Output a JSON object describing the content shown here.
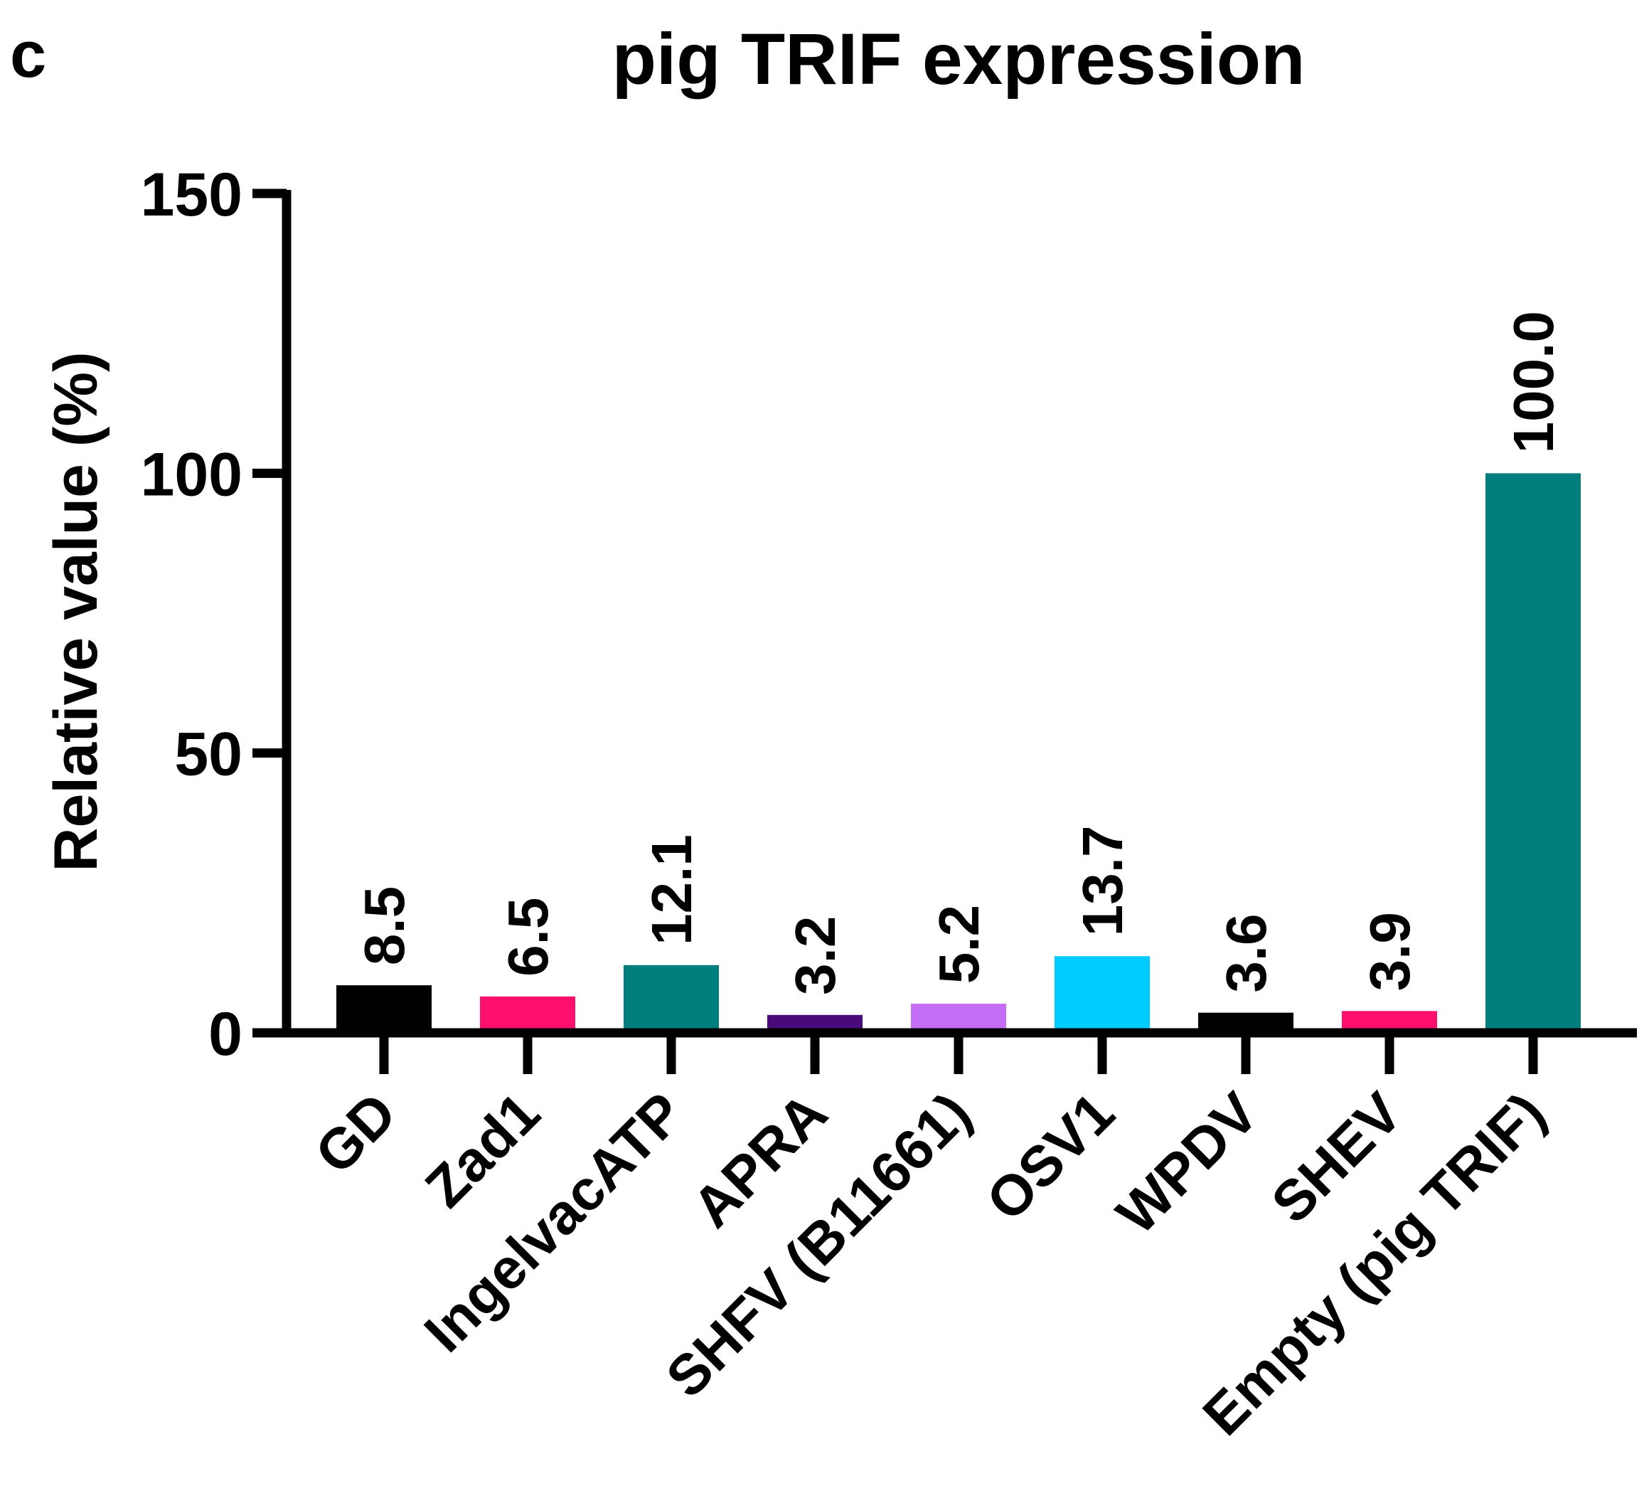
{
  "panel_label": "c",
  "chart_data": {
    "type": "bar",
    "title": "pig TRIF expression",
    "xlabel": "",
    "ylabel": "Relative value (%)",
    "ylim": [
      0,
      150
    ],
    "yticks": [
      0,
      50,
      100,
      150
    ],
    "categories": [
      "GD",
      "Zad1",
      "IngelvacATP",
      "APRA",
      "SHFV (B11661)",
      "OSV1",
      "WPDV",
      "SHEV",
      "Empty (pig TRIF)"
    ],
    "values": [
      8.5,
      6.5,
      12.1,
      3.2,
      5.2,
      13.7,
      3.6,
      3.9,
      100.0
    ],
    "value_labels": [
      "8.5",
      "6.5",
      "12.1",
      "3.2",
      "5.2",
      "13.7",
      "3.6",
      "3.9",
      "100.0"
    ],
    "colors": [
      "#000000",
      "#ff0f6e",
      "#007d7d",
      "#4b0a7a",
      "#c46df5",
      "#00ccff",
      "#000000",
      "#ff0f6e",
      "#007d7d"
    ],
    "grid": false,
    "legend": "none"
  }
}
